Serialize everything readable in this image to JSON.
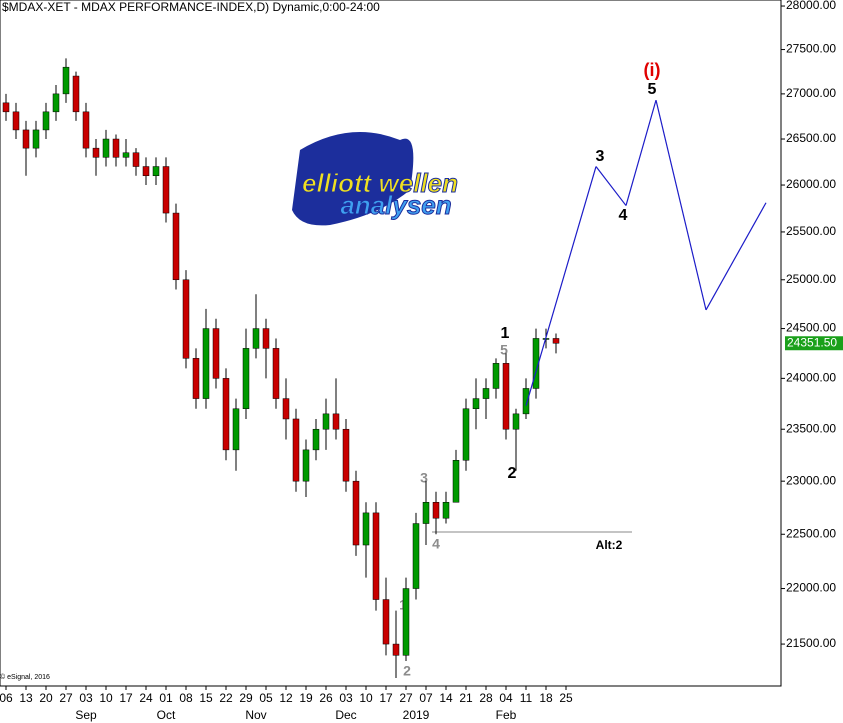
{
  "chart_data": {
    "type": "candlestick",
    "title": "$MDAX-XET - MDAX PERFORMANCE-INDEX,D) Dynamic,0:00-24:00",
    "copyright": "© eSignal, 2016",
    "logo": {
      "line1": "elliott wellen",
      "line2": "analysen"
    },
    "log_scale": true,
    "up_color": "#009a00",
    "down_color": "#c80000",
    "categories": [
      "06",
      null,
      "13",
      null,
      "20",
      null,
      "27",
      null,
      "03",
      null,
      "10",
      null,
      "17",
      null,
      "24",
      null,
      "01",
      null,
      "08",
      null,
      "15",
      null,
      "22",
      null,
      "29",
      null,
      "05",
      null,
      "12",
      null,
      "19",
      null,
      "26",
      null,
      "03",
      null,
      "10",
      null,
      "17",
      null,
      "27",
      null,
      "07",
      null,
      "14",
      null,
      "21",
      null,
      "28",
      null,
      "04",
      null,
      "11",
      null,
      "18",
      null,
      "25",
      null,
      null,
      null,
      null,
      null,
      null,
      null,
      null,
      null,
      null,
      null,
      null,
      null,
      null,
      null,
      null,
      null,
      null,
      null,
      null
    ],
    "month_labels": [
      null,
      null,
      null,
      null,
      null,
      null,
      null,
      null,
      "Sep",
      null,
      null,
      null,
      null,
      null,
      null,
      null,
      "Oct",
      null,
      null,
      null,
      null,
      null,
      null,
      null,
      null,
      "Nov",
      null,
      null,
      null,
      null,
      null,
      null,
      null,
      null,
      "Dec",
      null,
      null,
      null,
      null,
      null,
      null,
      "2019",
      null,
      null,
      null,
      null,
      null,
      null,
      null,
      null,
      "Feb",
      null,
      null,
      null,
      null,
      null,
      null,
      null,
      null,
      null,
      null,
      null,
      null,
      null,
      null,
      null,
      null,
      null,
      null,
      null,
      null,
      null,
      null,
      null,
      null,
      null,
      null
    ],
    "open": [
      26900,
      26800,
      26600,
      26400,
      26600,
      26800,
      27000,
      27200,
      26800,
      26400,
      26300,
      26500,
      26300,
      26350,
      26200,
      26100,
      26200,
      25700,
      25000,
      24200,
      23800,
      24500,
      24000,
      23300,
      23700,
      24300,
      24500,
      24300,
      23800,
      23600,
      23000,
      23300,
      23500,
      23650,
      23500,
      23000,
      22400,
      22700,
      21900,
      21500,
      21400,
      22000,
      22600,
      22800,
      22650,
      22800,
      23200,
      23700,
      23800,
      23900,
      24150,
      23500,
      23650,
      23900,
      24400,
      24400,
      null,
      null,
      null,
      null,
      null,
      null,
      null,
      null,
      null,
      null,
      null,
      null,
      null,
      null,
      null,
      null,
      null,
      null,
      null,
      null,
      null
    ],
    "high": [
      27000,
      26900,
      26700,
      26700,
      26900,
      27100,
      27400,
      27250,
      26900,
      26500,
      26600,
      26550,
      26500,
      26400,
      26300,
      26300,
      26300,
      25800,
      25100,
      24300,
      24700,
      24600,
      24100,
      23800,
      24500,
      24850,
      24600,
      24400,
      24000,
      23700,
      23400,
      23600,
      23800,
      24000,
      23600,
      23100,
      22800,
      22800,
      22100,
      21800,
      22100,
      22700,
      23000,
      22900,
      22900,
      23300,
      23800,
      24000,
      24000,
      24200,
      24250,
      23700,
      24000,
      24500,
      24500,
      24450,
      null,
      null,
      null,
      null,
      null,
      null,
      null,
      null,
      null,
      null,
      null,
      null,
      null,
      null,
      null,
      null,
      null,
      null,
      null,
      null,
      null
    ],
    "low": [
      26700,
      26500,
      26100,
      26300,
      26500,
      26700,
      26900,
      26700,
      26300,
      26100,
      26200,
      26200,
      26200,
      26100,
      26000,
      26000,
      25600,
      24900,
      24100,
      23700,
      23700,
      23900,
      23200,
      23100,
      23600,
      24200,
      24000,
      23700,
      23400,
      22900,
      22850,
      23200,
      23300,
      23400,
      22900,
      22300,
      22100,
      21800,
      21400,
      21200,
      21350,
      21900,
      22400,
      22500,
      22600,
      22800,
      23100,
      23500,
      23600,
      23800,
      23400,
      23100,
      23600,
      23800,
      24300,
      24250,
      null,
      null,
      null,
      null,
      null,
      null,
      null,
      null,
      null,
      null,
      null,
      null,
      null,
      null,
      null,
      null,
      null,
      null,
      null,
      null,
      null
    ],
    "close": [
      26800,
      26600,
      26400,
      26600,
      26800,
      27000,
      27300,
      26800,
      26400,
      26300,
      26500,
      26300,
      26350,
      26200,
      26100,
      26200,
      25700,
      25000,
      24200,
      23800,
      24500,
      24000,
      23300,
      23700,
      24300,
      24500,
      24300,
      23800,
      23600,
      23000,
      23300,
      23500,
      23650,
      23500,
      23000,
      22400,
      22700,
      21900,
      21500,
      21400,
      22000,
      22600,
      22800,
      22650,
      22800,
      23200,
      23700,
      23800,
      23900,
      24150,
      23500,
      23650,
      23900,
      24400,
      24400,
      24351.5,
      null,
      null,
      null,
      null,
      null,
      null,
      null,
      null,
      null,
      null,
      null,
      null,
      null,
      null,
      null,
      null,
      null,
      null,
      null,
      null,
      null
    ],
    "last_value": {
      "value": 24351.5,
      "label": "24351.50",
      "color": "#1aa01a"
    },
    "projection": {
      "color": "#1c1cc8",
      "values": [
        null,
        null,
        null,
        null,
        null,
        null,
        null,
        null,
        null,
        null,
        null,
        null,
        null,
        null,
        null,
        null,
        null,
        null,
        null,
        null,
        null,
        null,
        null,
        null,
        null,
        null,
        null,
        null,
        null,
        null,
        null,
        null,
        null,
        null,
        null,
        null,
        null,
        null,
        null,
        null,
        null,
        null,
        null,
        null,
        null,
        null,
        null,
        null,
        null,
        null,
        null,
        null,
        23730,
        null,
        null,
        null,
        null,
        null,
        null,
        26200,
        null,
        null,
        25780,
        null,
        null,
        26930,
        null,
        null,
        null,
        null,
        24690,
        null,
        null,
        null,
        null,
        null,
        25810
      ]
    },
    "annotations": [
      "1",
      "5",
      "2",
      "3",
      "4",
      "(i)",
      "5",
      "3",
      "4",
      "1",
      "2",
      "Alt:2"
    ],
    "ylim": [
      21130,
      28070
    ],
    "yticks": [
      {
        "value": 28000,
        "label": "28000.00"
      },
      {
        "value": 27500,
        "label": "27500.00"
      },
      {
        "value": 27000,
        "label": "27000.00"
      },
      {
        "value": 26500,
        "label": "26500.00"
      },
      {
        "value": 26000,
        "label": "26000.00"
      },
      {
        "value": 25500,
        "label": "25500.00"
      },
      {
        "value": 25000,
        "label": "25000.00"
      },
      {
        "value": 24500,
        "label": "24500.00"
      },
      {
        "value": 24000,
        "label": "24000.00"
      },
      {
        "value": 23500,
        "label": "23500.00"
      },
      {
        "value": 23000,
        "label": "23000.00"
      },
      {
        "value": 22500,
        "label": "22500.00"
      },
      {
        "value": 22000,
        "label": "22000.00"
      },
      {
        "value": 21500,
        "label": "21500.00"
      }
    ]
  }
}
